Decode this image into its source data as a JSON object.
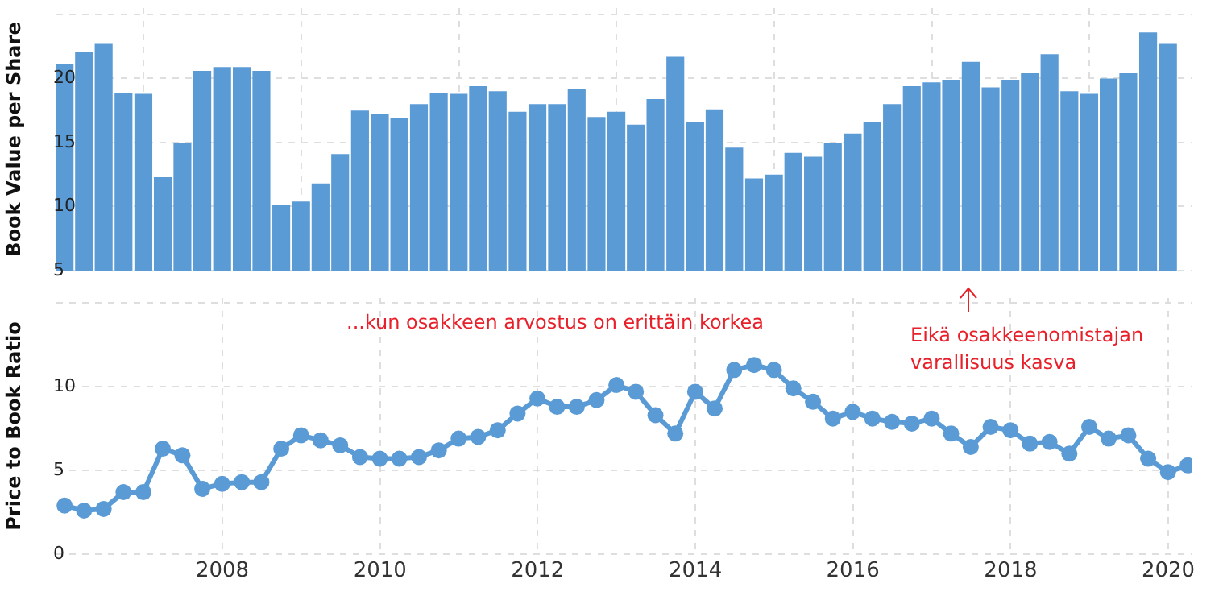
{
  "chart_data": [
    {
      "type": "bar",
      "ylabel": "Book Value per Share",
      "color": "#5b9bd5",
      "grid": true,
      "tick_labels": "y",
      "xlim": [
        "2005-11-23",
        "2020-04-22"
      ],
      "xticks": [
        {
          "value": "2008",
          "label": null
        },
        {
          "value": "2010",
          "label": null
        },
        {
          "value": "2012",
          "label": null
        },
        {
          "value": "2014",
          "label": null
        },
        {
          "value": "2016",
          "label": null
        },
        {
          "value": "2018",
          "label": null
        },
        {
          "value": "2020",
          "label": null
        }
      ],
      "ylim": [
        5,
        25.5
      ],
      "yticks": [
        5,
        10,
        15,
        20,
        {
          "value": 25,
          "label": null
        }
      ],
      "x": [
        "2005-12-31",
        "2006-03-31",
        "2006-06-30",
        "2006-09-30",
        "2006-12-31",
        "2007-03-31",
        "2007-06-30",
        "2007-09-30",
        "2007-12-31",
        "2008-03-31",
        "2008-06-30",
        "2008-09-30",
        "2008-12-31",
        "2009-03-31",
        "2009-06-30",
        "2009-09-30",
        "2009-12-31",
        "2010-03-31",
        "2010-06-30",
        "2010-09-30",
        "2010-12-31",
        "2011-03-31",
        "2011-06-30",
        "2011-09-30",
        "2011-12-31",
        "2012-03-31",
        "2012-06-30",
        "2012-09-30",
        "2012-12-31",
        "2013-03-31",
        "2013-06-30",
        "2013-09-30",
        "2013-12-31",
        "2014-03-31",
        "2014-06-30",
        "2014-09-30",
        "2014-12-31",
        "2015-03-31",
        "2015-06-30",
        "2015-09-30",
        "2015-12-31",
        "2016-03-31",
        "2016-06-30",
        "2016-09-30",
        "2016-12-31",
        "2017-03-31",
        "2017-06-30",
        "2017-09-30",
        "2017-12-31",
        "2018-03-31",
        "2018-06-30",
        "2018-09-30",
        "2018-12-31",
        "2019-03-31",
        "2019-06-30",
        "2019-09-30",
        "2019-12-31"
      ],
      "values": [
        21.1,
        22.1,
        22.7,
        18.9,
        18.8,
        12.3,
        15.0,
        20.6,
        20.9,
        20.9,
        20.6,
        10.1,
        10.4,
        11.8,
        14.1,
        17.5,
        17.2,
        16.9,
        18.0,
        18.9,
        18.8,
        19.4,
        19.0,
        17.4,
        18.0,
        18.0,
        19.2,
        17.0,
        17.4,
        16.4,
        18.4,
        21.7,
        16.6,
        17.6,
        14.6,
        12.2,
        12.5,
        14.2,
        13.9,
        15.0,
        15.7,
        16.6,
        18.0,
        19.4,
        19.7,
        19.9,
        21.3,
        19.3,
        19.9,
        20.4,
        21.9,
        19.0,
        18.8,
        20.0,
        20.4,
        23.6,
        22.7
      ]
    },
    {
      "type": "line",
      "ylabel": "Price to Book Ratio",
      "color": "#5b9bd5",
      "grid": true,
      "marker": "circle",
      "xlim": [
        "2005-11-23",
        "2020-04-22"
      ],
      "xticks": [
        "2008",
        "2010",
        "2012",
        "2014",
        "2016",
        "2018",
        "2020"
      ],
      "ylim": [
        0,
        15.3
      ],
      "yticks": [
        0,
        5,
        10,
        {
          "value": 15,
          "label": null
        }
      ],
      "annotations": [
        "...kun osakkeen arvostus on erittäin korkea",
        "Eikä osakkeenomistajan\nvarallisuus kasva"
      ],
      "x": [
        "2005-12-31",
        "2006-03-31",
        "2006-06-30",
        "2006-09-30",
        "2006-12-31",
        "2007-03-31",
        "2007-06-30",
        "2007-09-30",
        "2007-12-31",
        "2008-03-31",
        "2008-06-30",
        "2008-09-30",
        "2008-12-31",
        "2009-03-31",
        "2009-06-30",
        "2009-09-30",
        "2009-12-31",
        "2010-03-31",
        "2010-06-30",
        "2010-09-30",
        "2010-12-31",
        "2011-03-31",
        "2011-06-30",
        "2011-09-30",
        "2011-12-31",
        "2012-03-31",
        "2012-06-30",
        "2012-09-30",
        "2012-12-31",
        "2013-03-31",
        "2013-06-30",
        "2013-09-30",
        "2013-12-31",
        "2014-03-31",
        "2014-06-30",
        "2014-09-30",
        "2014-12-31",
        "2015-03-31",
        "2015-06-30",
        "2015-09-30",
        "2015-12-31",
        "2016-03-31",
        "2016-06-30",
        "2016-09-30",
        "2016-12-31",
        "2017-03-31",
        "2017-06-30",
        "2017-09-30",
        "2017-12-31",
        "2018-03-31",
        "2018-06-30",
        "2018-09-30",
        "2018-12-31",
        "2019-03-31",
        "2019-06-30",
        "2019-09-30",
        "2019-12-31",
        "2020-03-31"
      ],
      "values": [
        2.9,
        2.6,
        2.7,
        3.7,
        3.7,
        6.3,
        5.9,
        3.9,
        4.2,
        4.3,
        4.3,
        6.3,
        7.1,
        6.8,
        6.5,
        5.8,
        5.7,
        5.7,
        5.8,
        6.2,
        6.9,
        7.0,
        7.4,
        8.4,
        9.3,
        8.8,
        8.8,
        9.2,
        10.1,
        9.7,
        8.3,
        7.2,
        9.7,
        8.7,
        11.0,
        11.3,
        11.0,
        9.9,
        9.1,
        8.1,
        8.5,
        8.1,
        7.9,
        7.8,
        8.1,
        7.2,
        6.4,
        7.6,
        7.4,
        6.6,
        6.7,
        6.0,
        7.6,
        6.9,
        7.1,
        5.7,
        4.9,
        5.3
      ]
    }
  ]
}
